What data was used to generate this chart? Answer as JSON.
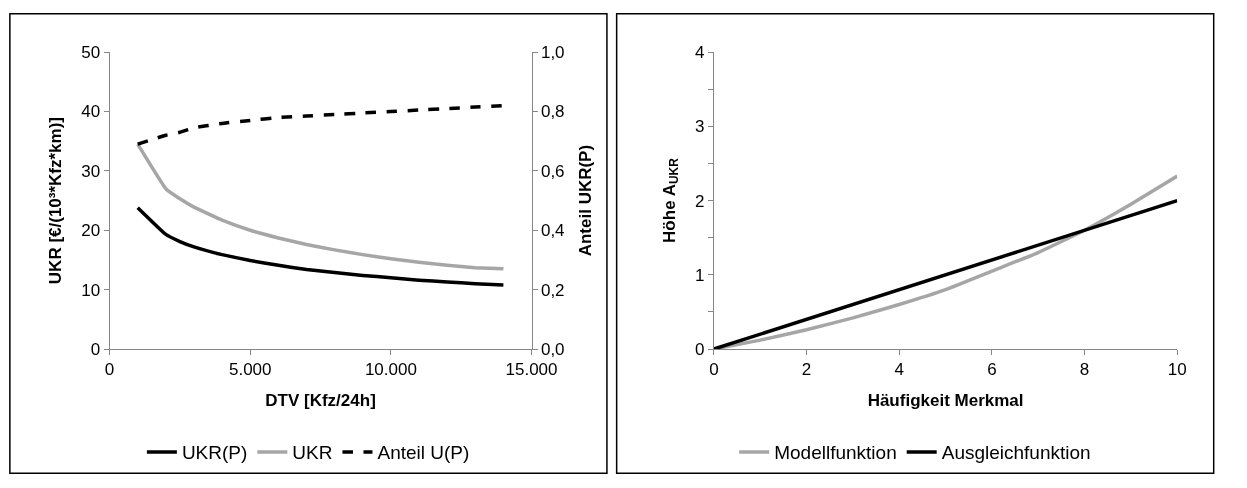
{
  "chart_data": [
    {
      "type": "line",
      "xlabel": "DTV [Kfz/24h]",
      "ylabel": "UKR [€/(10³*Kfz*km)]",
      "y2label": "Anteil UKR(P)",
      "x": [
        1000,
        2000,
        2500,
        3000,
        4000,
        5000,
        6000,
        7000,
        8000,
        9000,
        10000,
        11000,
        12000,
        13000,
        14000
      ],
      "series": [
        {
          "name": "UKR(P)",
          "color": "#000000",
          "values": [
            23.8,
            19.3,
            18.1,
            17.2,
            15.9,
            14.9,
            14.1,
            13.4,
            12.9,
            12.4,
            12.0,
            11.6,
            11.3,
            11.0,
            10.8
          ]
        },
        {
          "name": "UKR",
          "color": "#a6a6a6",
          "values": [
            34.5,
            27.0,
            25.3,
            23.9,
            21.7,
            20.0,
            18.7,
            17.6,
            16.7,
            15.9,
            15.2,
            14.6,
            14.1,
            13.7,
            13.5
          ]
        },
        {
          "name": "Anteil U(P)",
          "color": "#000000",
          "axis": "y2",
          "line_style": "dashed",
          "values": [
            0.69,
            0.72,
            0.73,
            0.745,
            0.76,
            0.77,
            0.78,
            0.785,
            0.79,
            0.795,
            0.8,
            0.805,
            0.81,
            0.815,
            0.82
          ]
        }
      ],
      "xlim": [
        0,
        15000
      ],
      "xticks": [
        0,
        {
          "value": 5000,
          "label": "5.000"
        },
        {
          "value": 10000,
          "label": "10.000"
        },
        {
          "value": 15000,
          "label": "15.000"
        }
      ],
      "ylim": [
        0,
        50
      ],
      "yticks": [
        0,
        10,
        20,
        30,
        40,
        50
      ],
      "y2lim": [
        0,
        1
      ],
      "y2ticks": [
        {
          "value": 0,
          "label": "0,0"
        },
        {
          "value": 0.2,
          "label": "0,2"
        },
        {
          "value": 0.4,
          "label": "0,4"
        },
        {
          "value": 0.6,
          "label": "0,6"
        },
        {
          "value": 0.8,
          "label": "0,8"
        },
        {
          "value": 1,
          "label": "1,0"
        }
      ],
      "legend": "bottom",
      "marker": "none",
      "line_style": "solid"
    },
    {
      "type": "line",
      "xlabel": "Häufigkeit Merkmal",
      "ylabel": "Höhe A$_{UKR}$",
      "series": [
        {
          "name": "Modellfunktion",
          "color": "#a6a6a6",
          "x": [
            0,
            1,
            2,
            3,
            4,
            5,
            6,
            7,
            8,
            9,
            10
          ],
          "values": [
            0,
            0.12,
            0.26,
            0.42,
            0.6,
            0.8,
            1.05,
            1.3,
            1.6,
            1.95,
            2.33
          ]
        },
        {
          "name": "Ausgleichfunktion",
          "color": "#000000",
          "x": [
            0,
            10
          ],
          "values": [
            0,
            2.0
          ]
        }
      ],
      "xlim": [
        0,
        10
      ],
      "xticks": [
        0,
        2,
        4,
        6,
        8,
        10
      ],
      "ylim": [
        0,
        4
      ],
      "yticks": [
        0,
        {
          "value": 0.5,
          "label": null
        },
        1,
        {
          "value": 1.5,
          "label": null
        },
        2,
        {
          "value": 2.5,
          "label": null
        },
        3,
        {
          "value": 3.5,
          "label": null
        },
        4
      ],
      "legend": "bottom",
      "marker": "none",
      "line_style": "solid"
    }
  ]
}
